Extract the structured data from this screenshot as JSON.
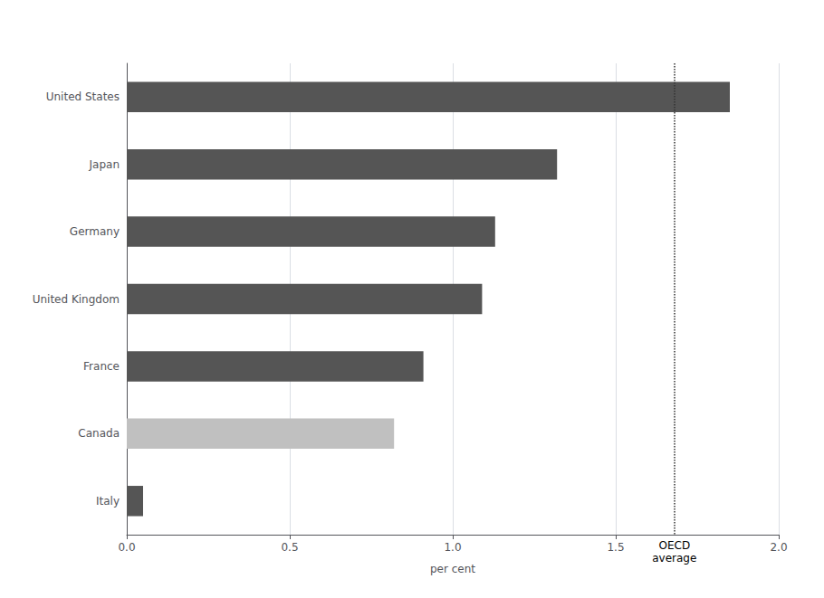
{
  "chart_data": {
    "type": "bar",
    "orientation": "horizontal",
    "categories": [
      "United States",
      "Japan",
      "Germany",
      "United Kingdom",
      "France",
      "Canada",
      "Italy"
    ],
    "values": [
      1.85,
      1.32,
      1.13,
      1.09,
      0.91,
      0.82,
      0.05
    ],
    "colors": [
      "#555555",
      "#555555",
      "#555555",
      "#555555",
      "#555555",
      "#c0c0c0",
      "#555555"
    ],
    "xlabel": "per cent",
    "xlim": [
      0,
      2.0
    ],
    "xticks": [
      {
        "value": 0.0,
        "label": "0.0"
      },
      0.5,
      {
        "value": 1.0,
        "label": "1.0"
      },
      1.5,
      {
        "value": 2.0,
        "label": "2.0"
      }
    ],
    "grid": true,
    "reference_line": {
      "value": 1.68,
      "label": [
        "OECD",
        "average"
      ]
    }
  }
}
